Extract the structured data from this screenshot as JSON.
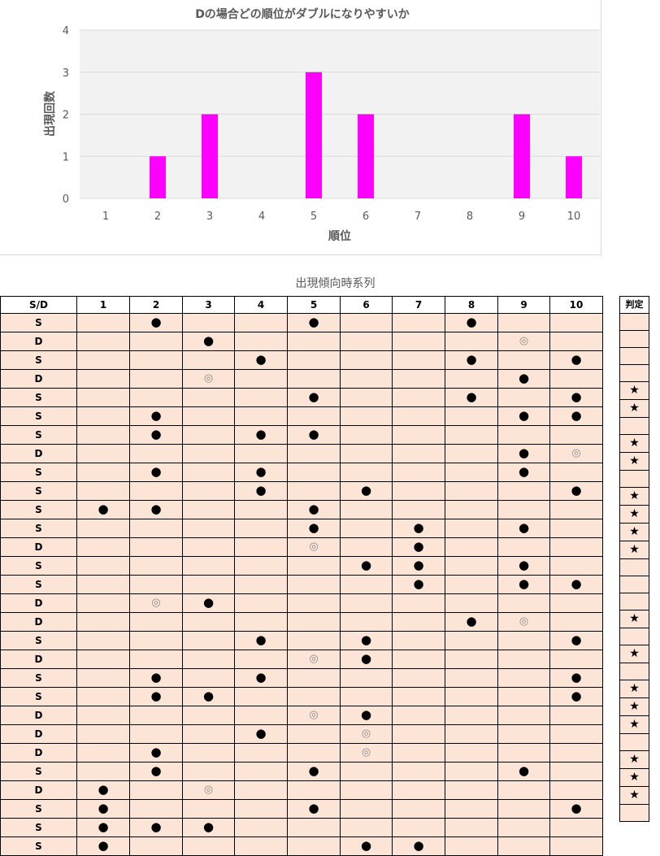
{
  "chart_data": {
    "type": "bar",
    "title": "Dの場合どの順位がダブルになりやすいか",
    "xlabel": "順位",
    "ylabel": "出現回数",
    "categories": [
      "1",
      "2",
      "3",
      "4",
      "5",
      "6",
      "7",
      "8",
      "9",
      "10"
    ],
    "values": [
      0,
      1,
      2,
      0,
      3,
      2,
      0,
      0,
      2,
      1
    ],
    "ylim": [
      0,
      4
    ],
    "yticks": [
      "0",
      "1",
      "2",
      "3",
      "4"
    ],
    "bar_color": "#ff00ff",
    "plot_bg": "#f2f2f2",
    "grid": true,
    "legend": "none"
  },
  "table": {
    "title": "出現傾向時系列",
    "headers": [
      "S/D",
      "1",
      "2",
      "3",
      "4",
      "5",
      "6",
      "7",
      "8",
      "9",
      "10"
    ],
    "judge_header": "判定",
    "symbols": {
      "dot": "●",
      "double": "◎",
      "star": "★"
    },
    "rows": [
      {
        "sd": "S",
        "marks": {
          "2": "dot",
          "5": "dot",
          "8": "dot"
        },
        "judge": ""
      },
      {
        "sd": "D",
        "marks": {
          "3": "dot",
          "9": "double"
        },
        "judge": ""
      },
      {
        "sd": "S",
        "marks": {
          "4": "dot",
          "8": "dot",
          "10": "dot"
        },
        "judge": ""
      },
      {
        "sd": "D",
        "marks": {
          "3": "double",
          "9": "dot"
        },
        "judge": ""
      },
      {
        "sd": "S",
        "marks": {
          "5": "dot",
          "8": "dot",
          "10": "dot"
        },
        "judge": "star"
      },
      {
        "sd": "S",
        "marks": {
          "2": "dot",
          "9": "dot",
          "10": "dot"
        },
        "judge": "star"
      },
      {
        "sd": "S",
        "marks": {
          "2": "dot",
          "4": "dot",
          "5": "dot"
        },
        "judge": ""
      },
      {
        "sd": "D",
        "marks": {
          "9": "dot",
          "10": "double"
        },
        "judge": "star"
      },
      {
        "sd": "S",
        "marks": {
          "2": "dot",
          "4": "dot",
          "9": "dot"
        },
        "judge": "star"
      },
      {
        "sd": "S",
        "marks": {
          "4": "dot",
          "6": "dot",
          "10": "dot"
        },
        "judge": ""
      },
      {
        "sd": "S",
        "marks": {
          "1": "dot",
          "2": "dot",
          "5": "dot"
        },
        "judge": "star"
      },
      {
        "sd": "S",
        "marks": {
          "5": "dot",
          "7": "dot",
          "9": "dot"
        },
        "judge": "star"
      },
      {
        "sd": "D",
        "marks": {
          "5": "double",
          "7": "dot"
        },
        "judge": "star"
      },
      {
        "sd": "S",
        "marks": {
          "6": "dot",
          "7": "dot",
          "9": "dot"
        },
        "judge": "star"
      },
      {
        "sd": "S",
        "marks": {
          "7": "dot",
          "9": "dot",
          "10": "dot"
        },
        "judge": ""
      },
      {
        "sd": "D",
        "marks": {
          "2": "double",
          "3": "dot"
        },
        "judge": ""
      },
      {
        "sd": "D",
        "marks": {
          "8": "dot",
          "9": "double"
        },
        "judge": ""
      },
      {
        "sd": "S",
        "marks": {
          "4": "dot",
          "6": "dot",
          "10": "dot"
        },
        "judge": "star"
      },
      {
        "sd": "D",
        "marks": {
          "5": "double",
          "6": "dot"
        },
        "judge": ""
      },
      {
        "sd": "S",
        "marks": {
          "2": "dot",
          "4": "dot",
          "10": "dot"
        },
        "judge": "star"
      },
      {
        "sd": "S",
        "marks": {
          "2": "dot",
          "3": "dot",
          "10": "dot"
        },
        "judge": ""
      },
      {
        "sd": "D",
        "marks": {
          "5": "double",
          "6": "dot"
        },
        "judge": "star"
      },
      {
        "sd": "D",
        "marks": {
          "4": "dot",
          "6": "double"
        },
        "judge": "star"
      },
      {
        "sd": "D",
        "marks": {
          "2": "dot",
          "6": "double"
        },
        "judge": "star"
      },
      {
        "sd": "S",
        "marks": {
          "2": "dot",
          "5": "dot",
          "9": "dot"
        },
        "judge": ""
      },
      {
        "sd": "D",
        "marks": {
          "1": "dot",
          "3": "double"
        },
        "judge": "star"
      },
      {
        "sd": "S",
        "marks": {
          "1": "dot",
          "5": "dot",
          "10": "dot"
        },
        "judge": "star"
      },
      {
        "sd": "S",
        "marks": {
          "1": "dot",
          "2": "dot",
          "3": "dot"
        },
        "judge": "star"
      },
      {
        "sd": "S",
        "marks": {
          "1": "dot",
          "6": "dot",
          "7": "dot"
        },
        "judge": ""
      }
    ]
  }
}
